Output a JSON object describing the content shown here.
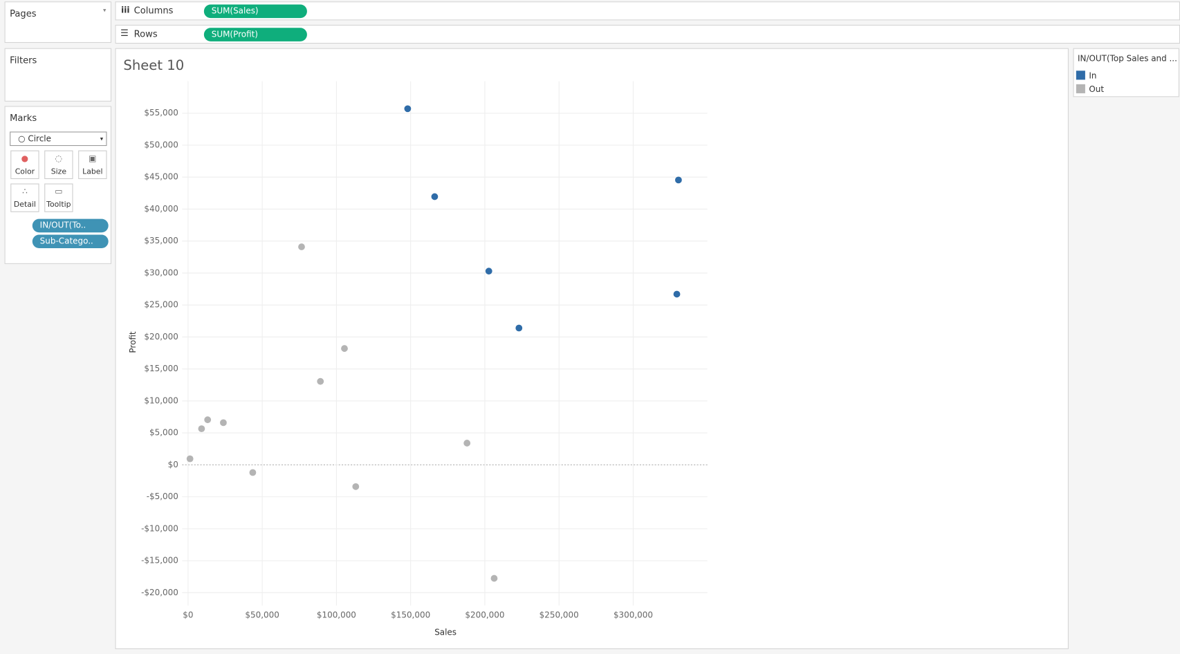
{
  "ui": {
    "pages": "Pages",
    "columns_label": "Columns",
    "columns_pill": "SUM(Sales)",
    "rows_label": "Rows",
    "rows_pill": "SUM(Profit)",
    "filters": "Filters",
    "marks": "Marks",
    "mark_type": "Circle",
    "mark_buttons": [
      "Color",
      "Size",
      "Label",
      "Detail",
      "Tooltip"
    ],
    "mark_pills": [
      "IN/OUT(To..",
      "Sub-Catego.."
    ],
    "legend_title": "IN/OUT(Top Sales and ..."
  },
  "chart_data": {
    "type": "scatter",
    "title": "Sheet 10",
    "x_label": "Sales",
    "y_label": "Profit",
    "xlim": [
      -4000,
      350000
    ],
    "ylim": [
      -22000,
      60000
    ],
    "grid": true,
    "xticks": [
      {
        "value": 0,
        "label": "$0"
      },
      {
        "value": 50000,
        "label": "$50,000"
      },
      {
        "value": 100000,
        "label": "$100,000"
      },
      {
        "value": 150000,
        "label": "$150,000"
      },
      {
        "value": 200000,
        "label": "$200,000"
      },
      {
        "value": 250000,
        "label": "$250,000"
      },
      {
        "value": 300000,
        "label": "$300,000"
      }
    ],
    "yticks": [
      {
        "value": -20000,
        "label": "-$20,000"
      },
      {
        "value": -15000,
        "label": "-$15,000"
      },
      {
        "value": -10000,
        "label": "-$10,000"
      },
      {
        "value": -5000,
        "label": "-$5,000"
      },
      {
        "value": 0,
        "label": "$0"
      },
      {
        "value": 5000,
        "label": "$5,000"
      },
      {
        "value": 10000,
        "label": "$10,000"
      },
      {
        "value": 15000,
        "label": "$15,000"
      },
      {
        "value": 20000,
        "label": "$20,000"
      },
      {
        "value": 25000,
        "label": "$25,000"
      },
      {
        "value": 30000,
        "label": "$30,000"
      },
      {
        "value": 35000,
        "label": "$35,000"
      },
      {
        "value": 40000,
        "label": "$40,000"
      },
      {
        "value": 45000,
        "label": "$45,000"
      },
      {
        "value": 50000,
        "label": "$50,000"
      },
      {
        "value": 55000,
        "label": "$55,000"
      }
    ],
    "series": [
      {
        "name": "In",
        "color": "#2f6ca8",
        "x": [
          148000,
          166200,
          202700,
          223000,
          330500,
          329400
        ],
        "values": [
          55700,
          41950,
          30300,
          21400,
          44550,
          26700
        ]
      },
      {
        "name": "Out",
        "color": "#b4b4b4",
        "x": [
          76500,
          1300,
          9100,
          13200,
          23800,
          43600,
          89200,
          105400,
          113000,
          188000,
          206300
        ],
        "values": [
          34100,
          950,
          5650,
          7050,
          6600,
          -1200,
          13050,
          18200,
          -3400,
          3400,
          -17750
        ]
      }
    ]
  }
}
